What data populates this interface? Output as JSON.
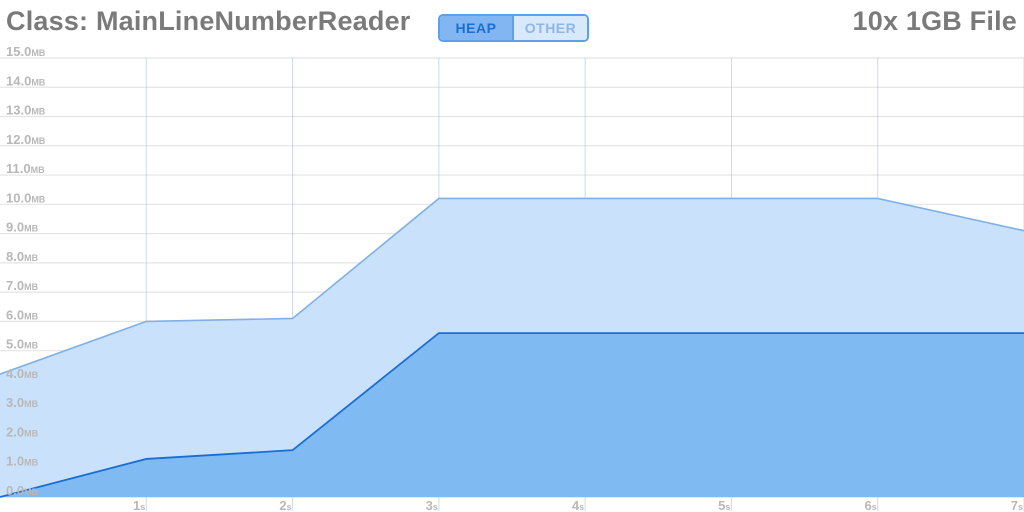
{
  "header": {
    "title": "Class: MainLineNumberReader",
    "subtitle": "10x 1GB File"
  },
  "toggle": {
    "heap_label": "HEAP",
    "other_label": "OTHER",
    "selected": "HEAP"
  },
  "colors": {
    "outer_fill": "#c9e1fb",
    "outer_line": "#7fb0e6",
    "inner_fill": "#80baf2",
    "inner_line": "#1a6ed2",
    "grid": "#e4e4e4",
    "tick_text": "#b8b8b8"
  },
  "chart_data": {
    "type": "area",
    "title": "Class: MainLineNumberReader",
    "subtitle": "10x 1GB File",
    "x": [
      0,
      1,
      2,
      3,
      4,
      5,
      6,
      7
    ],
    "series": [
      {
        "values": [
          4.2,
          6.0,
          6.1,
          10.2,
          10.2,
          10.2,
          10.2,
          9.1
        ]
      },
      {
        "values": [
          0.0,
          1.3,
          1.6,
          5.6,
          5.6,
          5.6,
          5.6,
          5.6
        ]
      }
    ],
    "xlim": [
      0,
      7
    ],
    "ylim": [
      0,
      15
    ],
    "y_ticks": [
      {
        "v": 0,
        "num": "0.0",
        "unit": "MB"
      },
      {
        "v": 1,
        "num": "1.0",
        "unit": "MB"
      },
      {
        "v": 2,
        "num": "2.0",
        "unit": "MB"
      },
      {
        "v": 3,
        "num": "3.0",
        "unit": "MB"
      },
      {
        "v": 4,
        "num": "4.0",
        "unit": "MB"
      },
      {
        "v": 5,
        "num": "5.0",
        "unit": "MB"
      },
      {
        "v": 6,
        "num": "6.0",
        "unit": "MB"
      },
      {
        "v": 7,
        "num": "7.0",
        "unit": "MB"
      },
      {
        "v": 8,
        "num": "8.0",
        "unit": "MB"
      },
      {
        "v": 9,
        "num": "9.0",
        "unit": "MB"
      },
      {
        "v": 10,
        "num": "10.0",
        "unit": "MB"
      },
      {
        "v": 11,
        "num": "11.0",
        "unit": "MB"
      },
      {
        "v": 12,
        "num": "12.0",
        "unit": "MB"
      },
      {
        "v": 13,
        "num": "13.0",
        "unit": "MB"
      },
      {
        "v": 14,
        "num": "14.0",
        "unit": "MB"
      },
      {
        "v": 15,
        "num": "15.0",
        "unit": "MB"
      }
    ],
    "x_ticks": [
      {
        "v": 1,
        "num": "1",
        "unit": "s"
      },
      {
        "v": 2,
        "num": "2",
        "unit": "s"
      },
      {
        "v": 3,
        "num": "3",
        "unit": "s"
      },
      {
        "v": 4,
        "num": "4",
        "unit": "s"
      },
      {
        "v": 5,
        "num": "5",
        "unit": "s"
      },
      {
        "v": 6,
        "num": "6",
        "unit": "s"
      },
      {
        "v": 7,
        "num": "7",
        "unit": "s"
      }
    ],
    "grid": true
  }
}
